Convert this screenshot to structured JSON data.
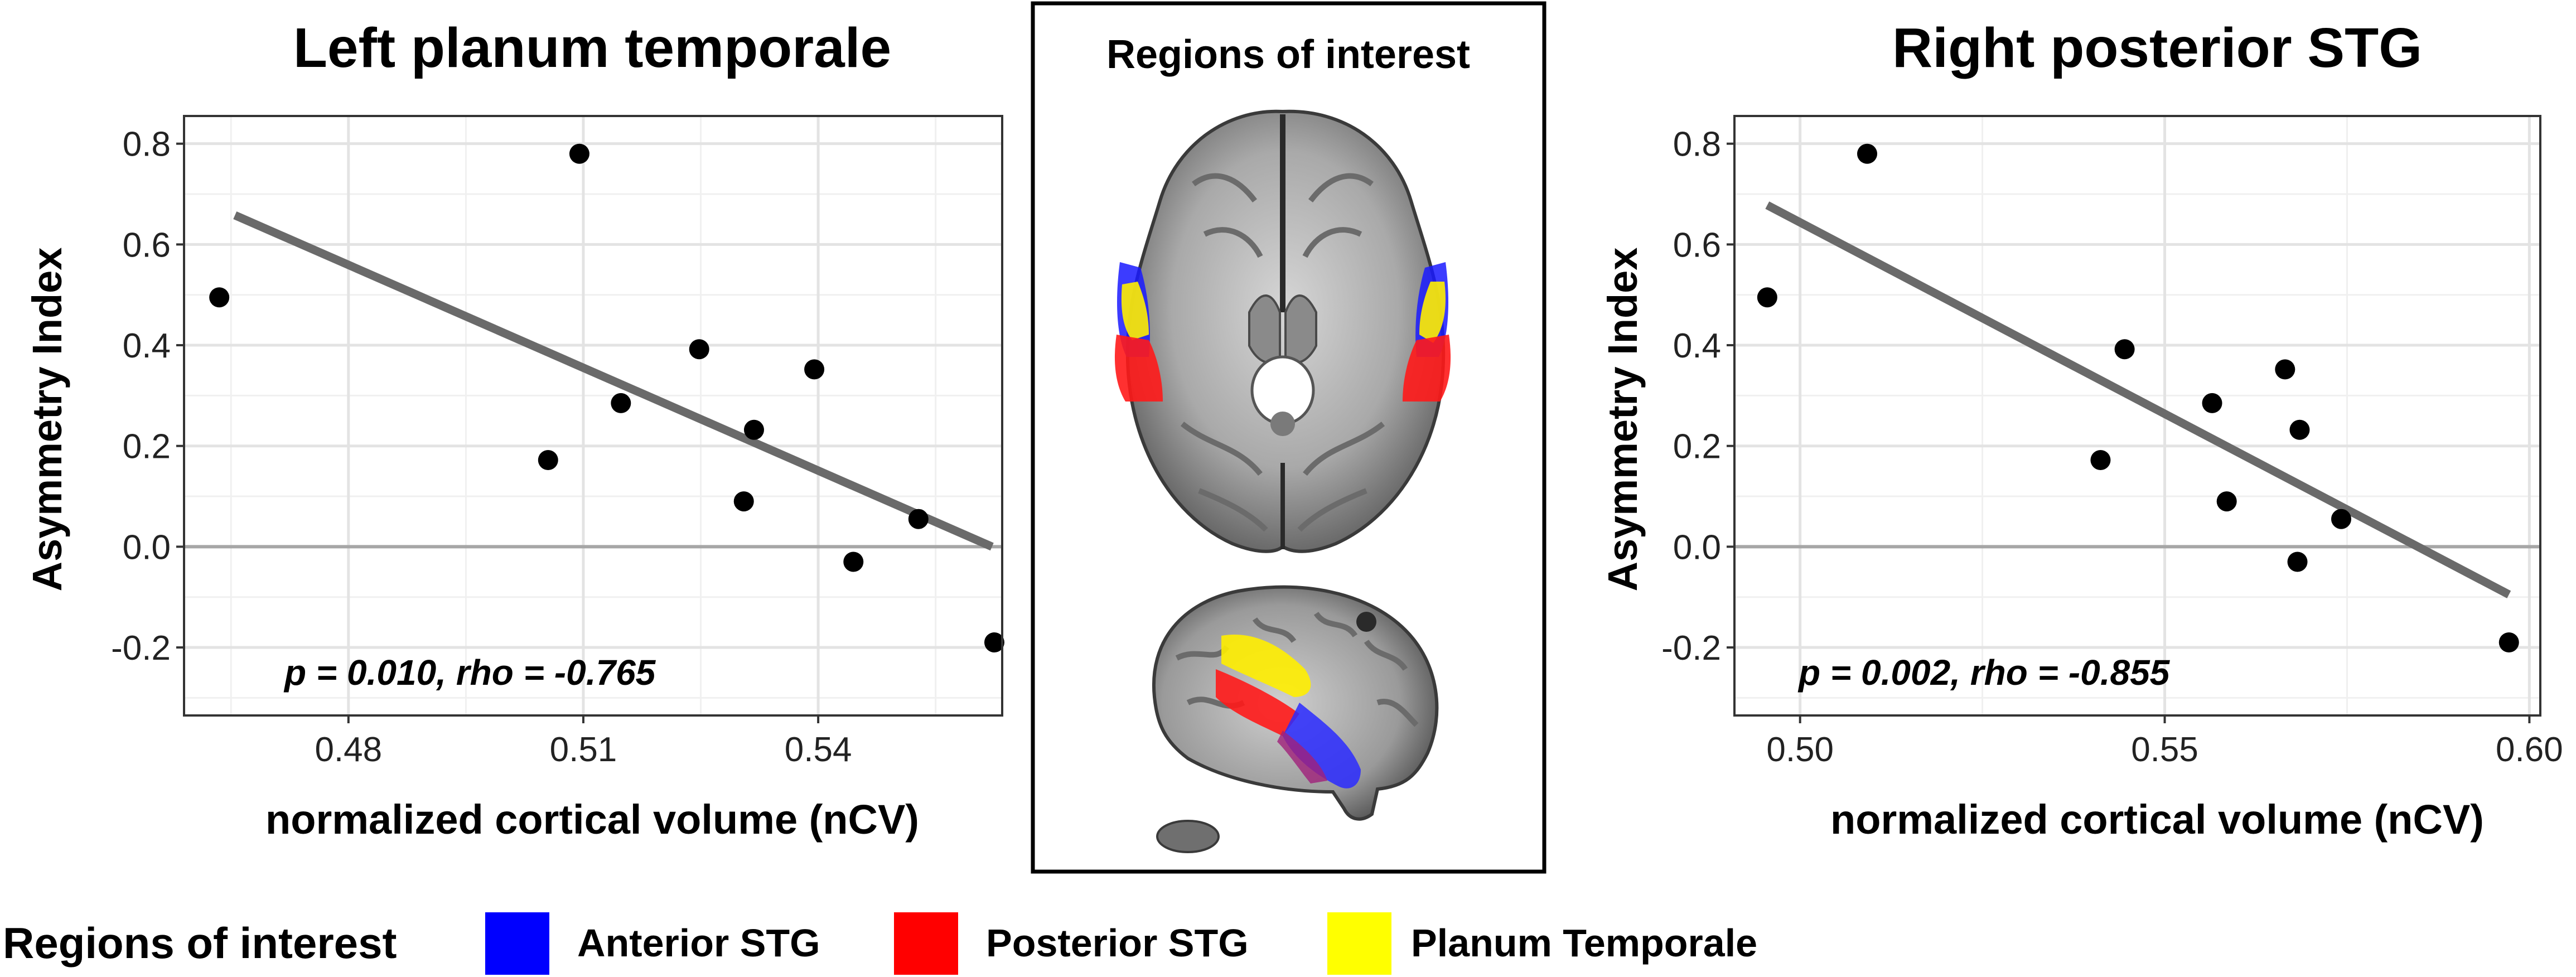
{
  "chart_data": [
    {
      "type": "scatter",
      "title": "Left planum temporale",
      "xlabel": "normalized cortical volume (nCV)",
      "ylabel": "Asymmetry Index",
      "xlim": [
        0.459,
        0.5635
      ],
      "ylim": [
        -0.335,
        0.855
      ],
      "xticks": [
        0.48,
        0.51,
        0.54
      ],
      "xtick_labels": [
        "0.48",
        "0.51",
        "0.54"
      ],
      "yticks": [
        -0.2,
        0.0,
        0.2,
        0.4,
        0.6,
        0.8
      ],
      "ytick_labels": [
        "-0.2",
        "0.0",
        "0.2",
        "0.4",
        "0.6",
        "0.8"
      ],
      "grid": true,
      "annotation": "p = 0.010, rho = -0.765",
      "points": [
        {
          "x": 0.4635,
          "y": 0.495
        },
        {
          "x": 0.5095,
          "y": 0.78
        },
        {
          "x": 0.5055,
          "y": 0.172
        },
        {
          "x": 0.5148,
          "y": 0.285
        },
        {
          "x": 0.5248,
          "y": 0.392
        },
        {
          "x": 0.5305,
          "y": 0.09
        },
        {
          "x": 0.5318,
          "y": 0.232
        },
        {
          "x": 0.5395,
          "y": 0.352
        },
        {
          "x": 0.5445,
          "y": -0.03
        },
        {
          "x": 0.5528,
          "y": 0.055
        },
        {
          "x": 0.5625,
          "y": -0.19
        }
      ],
      "fit_line": {
        "x": [
          0.4655,
          0.5622
        ],
        "y": [
          0.658,
          0.0
        ]
      }
    },
    {
      "type": "scatter",
      "title": "Right posterior STG",
      "xlabel": "normalized cortical volume (nCV)",
      "ylabel": "Asymmetry Index",
      "xlim": [
        0.491,
        0.6015
      ],
      "ylim": [
        -0.335,
        0.855
      ],
      "xticks": [
        0.5,
        0.55,
        0.6
      ],
      "xtick_labels": [
        "0.50",
        "0.55",
        "0.60"
      ],
      "yticks": [
        -0.2,
        0.0,
        0.2,
        0.4,
        0.6,
        0.8
      ],
      "ytick_labels": [
        "-0.2",
        "0.0",
        "0.2",
        "0.4",
        "0.6",
        "0.8"
      ],
      "grid": true,
      "annotation": "p = 0.002, rho = -0.855",
      "points": [
        {
          "x": 0.4955,
          "y": 0.495
        },
        {
          "x": 0.5092,
          "y": 0.78
        },
        {
          "x": 0.5412,
          "y": 0.172
        },
        {
          "x": 0.5445,
          "y": 0.392
        },
        {
          "x": 0.5565,
          "y": 0.285
        },
        {
          "x": 0.5585,
          "y": 0.09
        },
        {
          "x": 0.5665,
          "y": 0.352
        },
        {
          "x": 0.5685,
          "y": 0.232
        },
        {
          "x": 0.5682,
          "y": -0.03
        },
        {
          "x": 0.5742,
          "y": 0.055
        },
        {
          "x": 0.5972,
          "y": -0.19
        }
      ],
      "fit_line": {
        "x": [
          0.4955,
          0.5972
        ],
        "y": [
          0.678,
          -0.095
        ]
      }
    }
  ],
  "roi_panel": {
    "title": "Regions of interest"
  },
  "legend": {
    "title": "Regions of interest",
    "items": [
      {
        "label": "Anterior STG",
        "color": "#0000ff"
      },
      {
        "label": "Posterior STG",
        "color": "#ff0000"
      },
      {
        "label": "Planum Temporale",
        "color": "#ffff00"
      }
    ]
  },
  "colors": {
    "points": "#000000",
    "fit_line": "#6a6a6a",
    "zero_line": "#a6a6a6",
    "grid_major": "#e3e3e3",
    "grid_minor": "#f0f0f0",
    "panel_border": "#333333"
  }
}
